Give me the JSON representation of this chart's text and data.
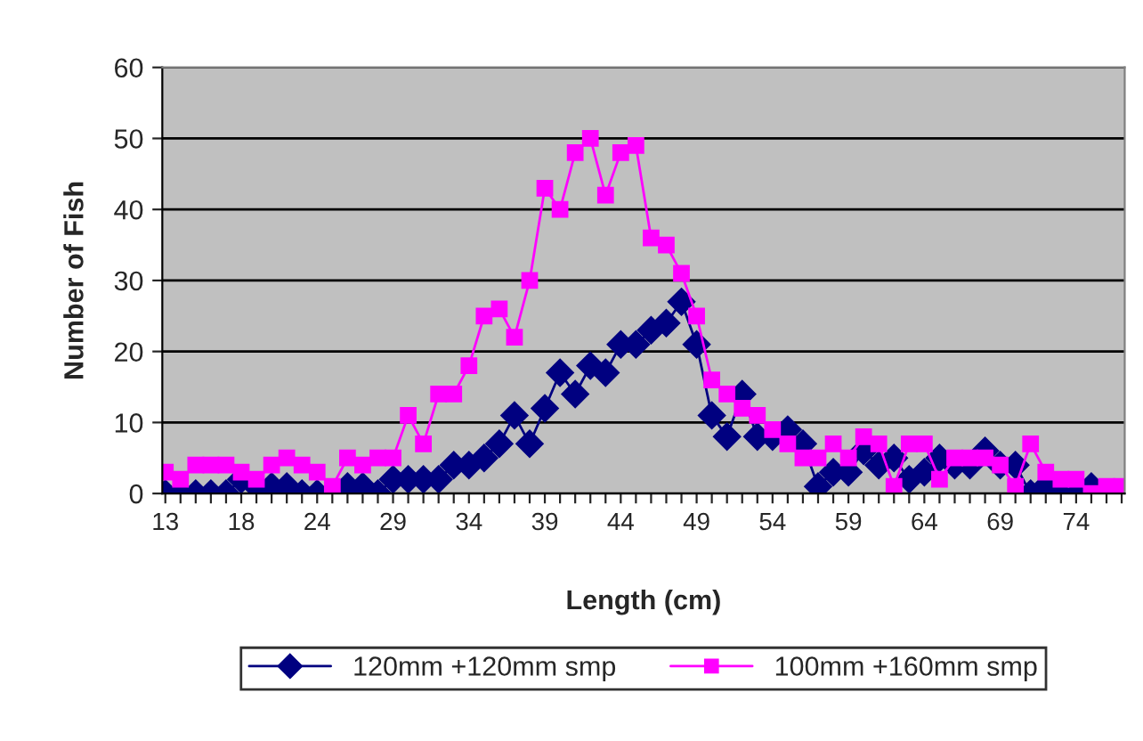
{
  "chart_data": {
    "type": "line",
    "xlabel": "Length (cm)",
    "ylabel": "Number of Fish",
    "categories": [
      "13",
      null,
      null,
      null,
      null,
      "18",
      null,
      null,
      null,
      null,
      "24",
      null,
      null,
      null,
      null,
      "29",
      null,
      null,
      null,
      null,
      "34",
      null,
      null,
      null,
      null,
      "39",
      null,
      null,
      null,
      null,
      "44",
      null,
      null,
      null,
      null,
      "49",
      null,
      null,
      null,
      null,
      "54",
      null,
      null,
      null,
      null,
      "59",
      null,
      null,
      null,
      null,
      "64",
      null,
      null,
      null,
      null,
      "69",
      null,
      null,
      null,
      null,
      "74",
      null,
      null,
      null
    ],
    "series": [
      {
        "name": "120mm +120mm smp",
        "color": "#000080",
        "marker": "diamond",
        "values": [
          0,
          0,
          0,
          0,
          0,
          2,
          1,
          1,
          1,
          0,
          0,
          0,
          1,
          1,
          0,
          2,
          2,
          2,
          2,
          4,
          4,
          5,
          7,
          11,
          7,
          12,
          17,
          14,
          18,
          17,
          21,
          21,
          23,
          24,
          27,
          21,
          11,
          8,
          14,
          8,
          8,
          9,
          7,
          1,
          3,
          3,
          6,
          4,
          5,
          2,
          3,
          5,
          4,
          4,
          6,
          4,
          4,
          0,
          1,
          1,
          0,
          1,
          0,
          0
        ]
      },
      {
        "name": "100mm +160mm smp",
        "color": "#ff00ff",
        "marker": "square",
        "values": [
          3,
          2,
          4,
          4,
          4,
          3,
          2,
          4,
          5,
          4,
          3,
          1,
          5,
          4,
          5,
          5,
          11,
          7,
          14,
          14,
          18,
          25,
          26,
          22,
          30,
          43,
          40,
          48,
          50,
          42,
          48,
          49,
          36,
          35,
          31,
          25,
          16,
          14,
          12,
          11,
          9,
          7,
          5,
          5,
          7,
          5,
          8,
          7,
          1,
          7,
          7,
          2,
          5,
          5,
          5,
          4,
          1,
          7,
          3,
          2,
          2,
          0,
          1,
          1
        ]
      }
    ],
    "ylim": [
      0,
      60
    ],
    "yticks": [
      0,
      10,
      20,
      30,
      40,
      50,
      60
    ],
    "grid": "y",
    "legend": "bottom",
    "line_style": "solid"
  }
}
